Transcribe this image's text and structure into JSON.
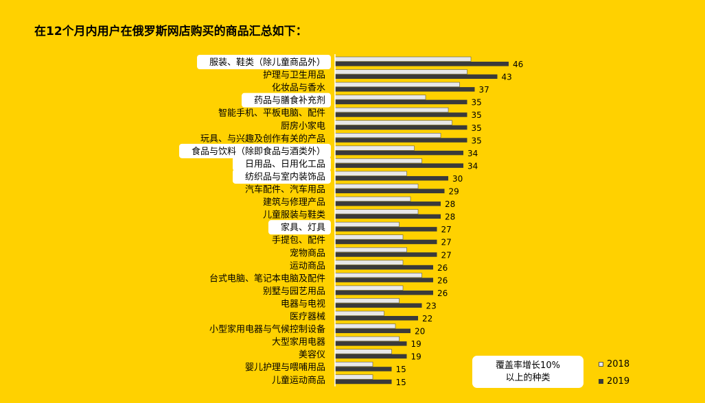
{
  "title": "在12个月内用户在俄罗斯网店购买的商品汇总如下：",
  "highlight_note": {
    "line1": "覆盖率增长10%",
    "line2": "以上的种类"
  },
  "colors": {
    "background": "#FFD100",
    "bar_2018": "#E8E8E8",
    "bar_2019": "#3A3A3A",
    "highlight": "#FFFFFF"
  },
  "chart_data": {
    "type": "bar",
    "orientation": "horizontal",
    "categories": [
      "服装、鞋类（除儿童商品外）",
      "护理与卫生用品",
      "化妆品与香水",
      "药品与膳食补充剂",
      "智能手机、平板电脑、配件",
      "厨房小家电",
      "玩具、与兴趣及创作有关的产品",
      "食品与饮料（除即食品与酒类外）",
      "日用品、日用化工品",
      "纺织品与室内装饰品",
      "汽车配件、汽车用品",
      "建筑与修理产品",
      "儿童服装与鞋类",
      "家具、灯具",
      "手提包、配件",
      "宠物商品",
      "运动商品",
      "台式电脑、笔记本电脑及配件",
      "别墅与园艺用品",
      "电器与电视",
      "医疗器械",
      "小型家用电器与气候控制设备",
      "大型家用电器",
      "美容仪",
      "婴儿护理与喂哺用品",
      "儿童运动商品"
    ],
    "highlighted": [
      true,
      false,
      false,
      true,
      false,
      false,
      false,
      true,
      true,
      true,
      false,
      false,
      false,
      true,
      false,
      false,
      false,
      false,
      false,
      false,
      false,
      false,
      false,
      false,
      false,
      false
    ],
    "series": [
      {
        "name": "2018",
        "values": [
          36,
          35,
          33,
          24,
          30,
          31,
          28,
          21,
          23,
          19,
          22,
          20,
          22,
          17,
          18,
          19,
          18,
          23,
          18,
          17,
          13,
          16,
          17,
          15,
          10,
          10
        ]
      },
      {
        "name": "2019",
        "values": [
          46,
          43,
          37,
          35,
          35,
          35,
          35,
          34,
          34,
          30,
          29,
          28,
          28,
          27,
          27,
          27,
          26,
          26,
          26,
          23,
          22,
          20,
          19,
          19,
          15,
          15
        ],
        "labels": [
          "46",
          "43",
          "37",
          "35",
          "35",
          "35",
          "35",
          "34",
          "34",
          "30",
          "29",
          "28",
          "28",
          "27",
          "27",
          "27",
          "26",
          "26",
          "26",
          "23",
          "22",
          "20",
          "19",
          "19",
          "15",
          "15"
        ]
      }
    ],
    "xlim": [
      0,
      50
    ],
    "grid": false,
    "legend_position": "bottom-right"
  }
}
